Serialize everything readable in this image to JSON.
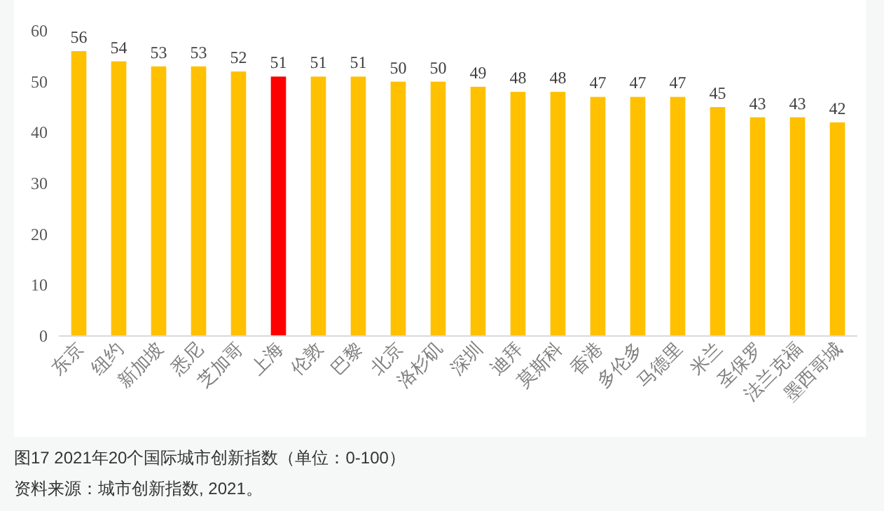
{
  "chart_data": {
    "type": "bar",
    "title": "图17  2021年20个国际城市创新指数（单位：0-100）",
    "annotations": [
      "资料来源：城市创新指数, 2021。"
    ],
    "categories": [
      "东京",
      "纽约",
      "新加坡",
      "悉尼",
      "芝加哥",
      "上海",
      "伦敦",
      "巴黎",
      "北京",
      "洛杉矶",
      "深圳",
      "迪拜",
      "莫斯科",
      "香港",
      "多伦多",
      "马德里",
      "米兰",
      "圣保罗",
      "法兰克福",
      "墨西哥城"
    ],
    "values": [
      56,
      54,
      53,
      53,
      52,
      51,
      51,
      51,
      50,
      50,
      49,
      48,
      48,
      47,
      47,
      47,
      45,
      43,
      43,
      42
    ],
    "colors": [
      "#ffc000",
      "#ffc000",
      "#ffc000",
      "#ffc000",
      "#ffc000",
      "#ff0000",
      "#ffc000",
      "#ffc000",
      "#ffc000",
      "#ffc000",
      "#ffc000",
      "#ffc000",
      "#ffc000",
      "#ffc000",
      "#ffc000",
      "#ffc000",
      "#ffc000",
      "#ffc000",
      "#ffc000",
      "#ffc000"
    ],
    "ylim": [
      0,
      60
    ],
    "yticks": [
      0,
      10,
      20,
      30,
      40,
      50,
      60
    ],
    "data_labels": true
  }
}
